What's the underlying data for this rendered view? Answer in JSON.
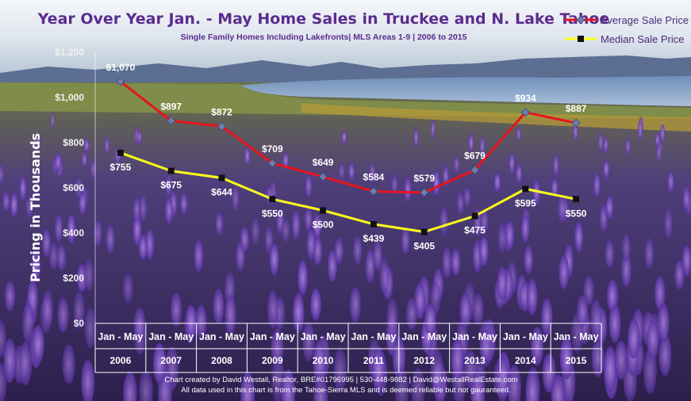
{
  "chart_data": {
    "type": "line",
    "title": "Year Over Year Jan. - May Home Sales in Truckee and N. Lake Tahoe",
    "subtitle": "Single Family Homes Including Lakefronts| MLS Areas 1-9 | 2006 to 2015",
    "ylabel": "Pricing in Thousands",
    "xlabel": "",
    "ylim": [
      0,
      1200
    ],
    "yticks": [
      "$0",
      "$200",
      "$400",
      "$600",
      "$800",
      "$1,000",
      "$1,200"
    ],
    "category_period": "Jan - May",
    "categories": [
      "2006",
      "2007",
      "2008",
      "2009",
      "2010",
      "2011",
      "2012",
      "2013",
      "2014",
      "2015"
    ],
    "legend_position": "top-right",
    "grid": false,
    "series": [
      {
        "name": "Average Sale Price",
        "color": "#e8141c",
        "marker": "diamond",
        "values": [
          1070,
          897,
          872,
          709,
          649,
          584,
          579,
          679,
          934,
          887
        ],
        "labels": [
          "$1,070",
          "$897",
          "$872",
          "$709",
          "$649",
          "$584",
          "$579",
          "$679",
          "$934",
          "$887"
        ]
      },
      {
        "name": "Median Sale Price",
        "color": "#ffff1a",
        "marker": "square",
        "values": [
          755,
          675,
          644,
          550,
          500,
          439,
          405,
          475,
          595,
          550
        ],
        "labels": [
          "$755",
          "$675",
          "$644",
          "$550",
          "$500",
          "$439",
          "$405",
          "$475",
          "$595",
          "$550"
        ]
      }
    ]
  },
  "footer": {
    "line1": "Chart created by David Westall, Realtor, BRE#01796995 | 530-448-9882 | David@WestallRealEstate.com",
    "line2": "All data used in this chart is from the Tahoe-Sierra MLS and is deemed reliable but  not gauranteed."
  }
}
